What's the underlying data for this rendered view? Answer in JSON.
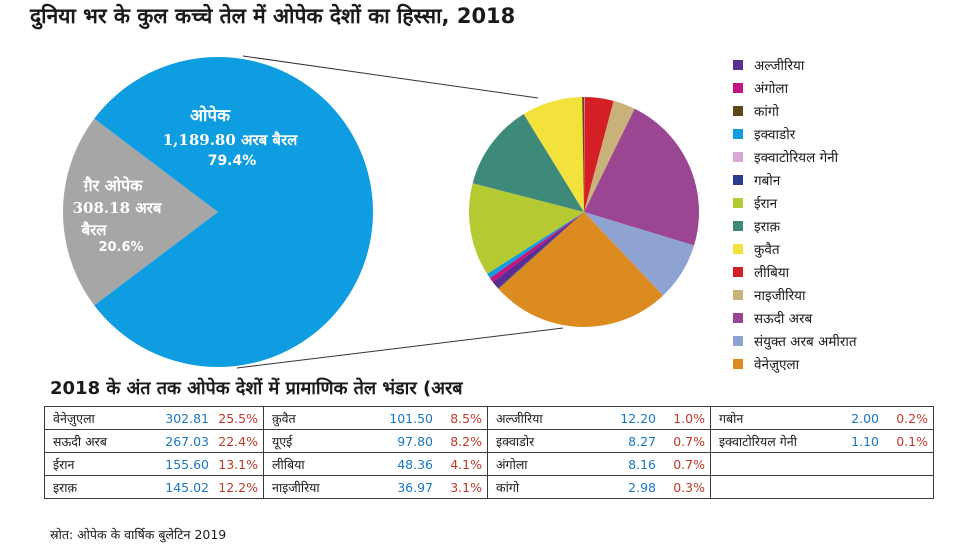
{
  "title": "दुनिया भर के कुल कच्चे तेल में ओपेक देशों का हिस्सा, 2018",
  "chart_data": [
    {
      "type": "pie",
      "title": "दुनिया भर के कुल कच्चे तेल में ओपेक देशों का हिस्सा, 2018",
      "slices": [
        {
          "name": "ओपेक",
          "value": 1189.8,
          "value_label": "1,189.80 अरब बैरल",
          "pct_label": "79.4%",
          "color": "#0d9de0"
        },
        {
          "name": "ग़ैर ओपेक",
          "value": 308.18,
          "value_label_1": "308.18 अरब",
          "value_label_2": "बैरल",
          "pct_label": "20.6%",
          "color": "#a6a6a6"
        }
      ]
    },
    {
      "type": "pie",
      "title": "ओपेक देशों का हिस्सा",
      "slices": [
        {
          "name": "अल्जीरिया",
          "value": 12.2,
          "color": "#5b2c91"
        },
        {
          "name": "अंगोला",
          "value": 8.16,
          "color": "#c4157e"
        },
        {
          "name": "कांगो",
          "value": 2.98,
          "color": "#5e4616"
        },
        {
          "name": "इक्वाडोर",
          "value": 8.27,
          "color": "#0d9de0"
        },
        {
          "name": "इक्वाटोरियल गेनी",
          "value": 1.1,
          "color": "#d9a8d6"
        },
        {
          "name": "गबोन",
          "value": 2.0,
          "color": "#2a3a8c"
        },
        {
          "name": "ईरान",
          "value": 155.6,
          "color": "#b5c932"
        },
        {
          "name": "इराक़",
          "value": 145.02,
          "color": "#3d8a7b"
        },
        {
          "name": "कुवैत",
          "value": 101.5,
          "color": "#f3e23b"
        },
        {
          "name": "लीबिया",
          "value": 48.36,
          "color": "#d42025"
        },
        {
          "name": "नाइजीरिया",
          "value": 36.97,
          "color": "#c8b27a"
        },
        {
          "name": "सऊदी अरब",
          "value": 267.03,
          "color": "#9b4693"
        },
        {
          "name": "संयुक्त अरब अमीरात",
          "value": 97.8,
          "color": "#8fa3d3"
        },
        {
          "name": "वेनेज़ुएला",
          "value": 302.81,
          "color": "#db8b1f"
        }
      ]
    }
  ],
  "table": {
    "title": "2018 के अंत तक ओपेक देशों में प्रामाणिक तेल भंडार (अरब",
    "rows": [
      [
        {
          "name": "वेनेज़ुएला",
          "value": "302.81",
          "pct": "25.5%"
        },
        {
          "name": "क़ुवैत",
          "value": "101.50",
          "pct": "8.5%"
        },
        {
          "name": "अल्जीरिया",
          "value": "12.20",
          "pct": "1.0%"
        },
        {
          "name": "गबोन",
          "value": "2.00",
          "pct": "0.2%"
        }
      ],
      [
        {
          "name": "सऊदी अरब",
          "value": "267.03",
          "pct": "22.4%"
        },
        {
          "name": "यूएई",
          "value": "97.80",
          "pct": "8.2%"
        },
        {
          "name": "इक्वाडोर",
          "value": "8.27",
          "pct": "0.7%"
        },
        {
          "name": "इक्वाटोरियल गेनी",
          "value": "1.10",
          "pct": "0.1%"
        }
      ],
      [
        {
          "name": "ईरान",
          "value": "155.60",
          "pct": "13.1%"
        },
        {
          "name": "लीबिया",
          "value": "48.36",
          "pct": "4.1%"
        },
        {
          "name": "अंगोला",
          "value": "8.16",
          "pct": "0.7%"
        },
        {
          "name": "",
          "value": "",
          "pct": ""
        }
      ],
      [
        {
          "name": "इराक़",
          "value": "145.02",
          "pct": "12.2%"
        },
        {
          "name": "नाइजीरिया",
          "value": "36.97",
          "pct": "3.1%"
        },
        {
          "name": "कांगो",
          "value": "2.98",
          "pct": "0.3%"
        },
        {
          "name": "",
          "value": "",
          "pct": ""
        }
      ]
    ]
  },
  "source": "स्रोत: ओपेक के वार्षिक बुलेटिन 2019"
}
